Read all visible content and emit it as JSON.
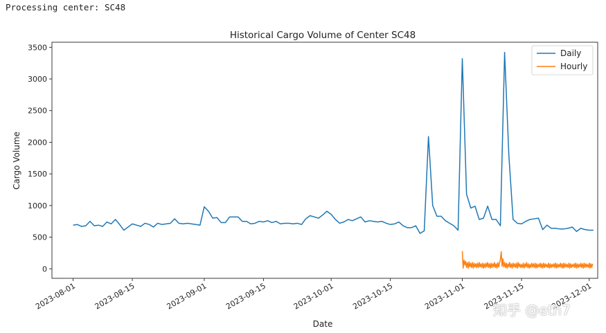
{
  "header": {
    "text": "Processing center: SC48"
  },
  "watermark": {
    "text": "知乎 @eth7"
  },
  "colors": {
    "daily": "#1f77b4",
    "hourly": "#ff7f0e",
    "axis": "#222222"
  },
  "chart_data": {
    "type": "line",
    "title": "Historical Cargo Volume of Center SC48",
    "xlabel": "Date",
    "ylabel": "Cargo Volume",
    "xlim": [
      "2023-07-27",
      "2023-12-03"
    ],
    "ylim": [
      -150,
      3580
    ],
    "yticks": [
      0,
      500,
      1000,
      1500,
      2000,
      2500,
      3000,
      3500
    ],
    "xticks": [
      "2023-08-01",
      "2023-08-15",
      "2023-09-01",
      "2023-09-15",
      "2023-10-01",
      "2023-10-15",
      "2023-11-01",
      "2023-11-15",
      "2023-12-01"
    ],
    "grid": false,
    "legend": {
      "position": "top-right"
    },
    "series": [
      {
        "name": "Daily",
        "start": "2023-08-01",
        "values": [
          690,
          700,
          670,
          680,
          750,
          680,
          690,
          670,
          740,
          710,
          780,
          700,
          610,
          660,
          710,
          690,
          670,
          720,
          700,
          660,
          720,
          700,
          710,
          720,
          790,
          720,
          710,
          720,
          710,
          700,
          690,
          980,
          910,
          800,
          810,
          730,
          730,
          820,
          820,
          820,
          750,
          750,
          710,
          720,
          750,
          740,
          760,
          730,
          750,
          710,
          720,
          720,
          710,
          720,
          700,
          790,
          840,
          820,
          800,
          850,
          910,
          860,
          780,
          720,
          740,
          780,
          760,
          790,
          820,
          740,
          760,
          750,
          740,
          750,
          720,
          700,
          710,
          740,
          680,
          650,
          650,
          680,
          560,
          600,
          2090,
          1000,
          830,
          830,
          760,
          720,
          680,
          610,
          3320,
          1180,
          960,
          990,
          780,
          800,
          990,
          780,
          780,
          680,
          3420,
          1800,
          780,
          720,
          710,
          750,
          780,
          790,
          800,
          620,
          690,
          640,
          640,
          630,
          630,
          640,
          660,
          590,
          640,
          620,
          610,
          610
        ]
      },
      {
        "name": "Hourly",
        "start": "2023-11-01",
        "values": [
          280,
          10,
          140,
          60,
          120,
          20,
          100,
          10,
          110,
          30,
          90,
          20,
          100,
          10,
          90,
          30,
          80,
          20,
          90,
          20,
          100,
          30,
          80,
          20,
          90,
          10,
          80,
          20,
          90,
          30,
          100,
          20,
          80,
          10,
          90,
          20,
          80,
          30,
          100,
          20,
          80,
          10,
          100,
          30,
          90,
          150,
          270,
          40,
          160,
          30,
          100,
          20,
          90,
          10,
          80,
          30,
          100,
          20,
          80,
          10,
          90,
          30,
          80,
          20,
          90,
          10,
          100,
          30,
          80,
          20,
          70,
          20,
          90,
          10,
          80,
          30,
          100,
          20,
          80,
          10,
          70,
          20,
          90,
          30,
          80,
          20,
          90,
          10,
          80,
          20,
          70,
          30,
          90,
          20,
          80,
          10,
          90,
          20,
          80,
          30,
          70,
          20,
          90,
          10,
          80,
          20,
          70,
          30,
          80,
          20,
          90,
          10,
          80,
          20,
          70,
          30,
          90,
          20,
          80,
          10,
          90,
          20,
          80,
          30,
          70,
          20,
          90,
          10,
          80,
          20,
          70,
          30,
          80,
          20,
          90,
          10,
          80,
          20,
          70,
          30,
          90,
          20,
          80,
          10,
          90,
          20,
          80,
          30,
          70,
          20,
          90,
          10,
          80,
          20,
          80
        ]
      }
    ]
  }
}
